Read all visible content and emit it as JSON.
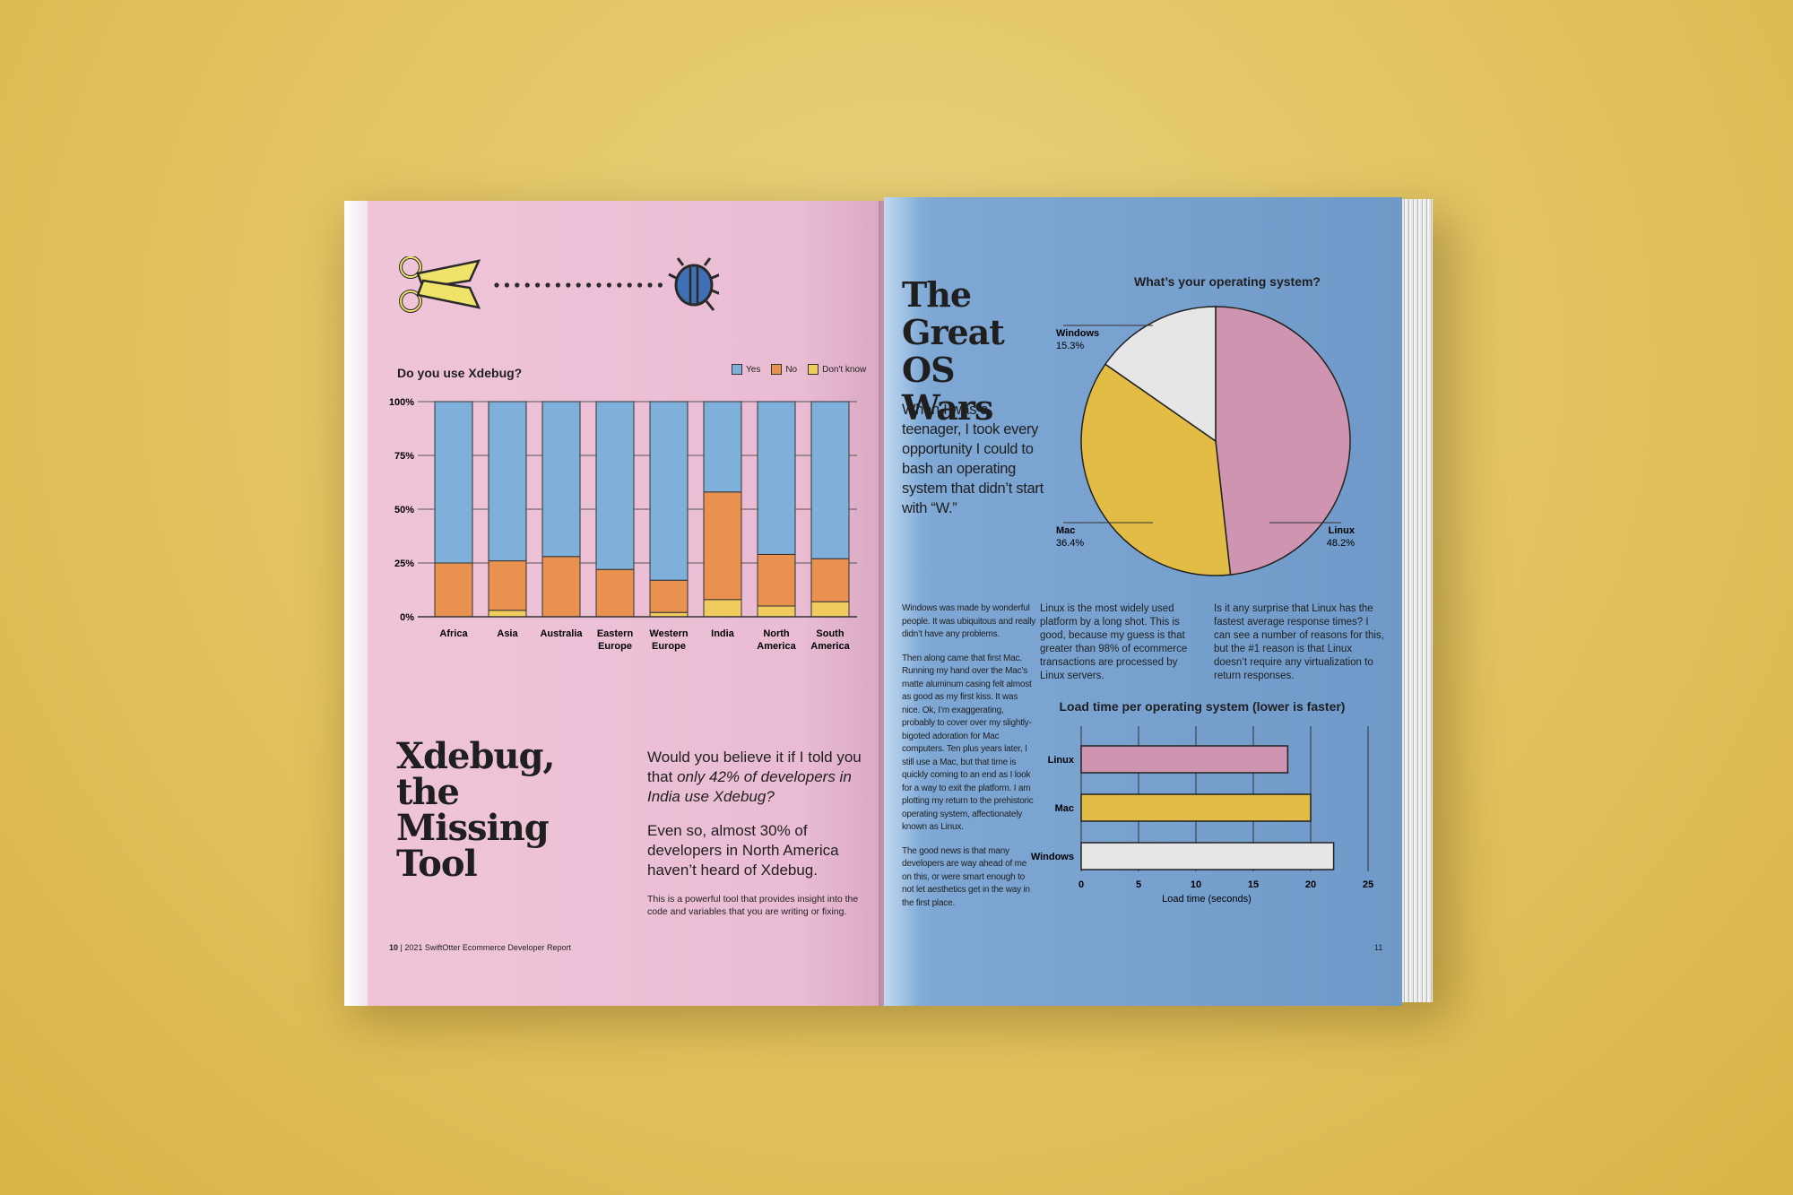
{
  "left_page": {
    "chart": {
      "title": "Do you use Xdebug?",
      "legend": [
        "Yes",
        "No",
        "Don't know"
      ]
    },
    "heading": "Xdebug, the Missing Tool",
    "lead_1_pre": "Would you believe it if I told you that ",
    "lead_1_em": "only 42% of developers in India use Xdebug?",
    "lead_2": "Even so, almost 30% of developers in North America haven’t heard of Xdebug.",
    "note": "This is a powerful tool that provides insight into the code and variables that you are writing or fixing.",
    "footer_page": "10",
    "footer_sep": "|",
    "footer_text": "2021 SwiftOtter Ecommerce Developer Report"
  },
  "right_page": {
    "heading": "The Great OS Wars",
    "intro": "When I was a teenager, I took every opportunity I could to bash an operating system that didn’t start with “W.”",
    "col1": [
      "Windows was made by wonderful people. It was ubiquitous and really didn’t have any problems.",
      "Then along came that first Mac. Running my hand over the Mac’s matte aluminum casing felt almost as good as my first kiss. It was nice. Ok, I’m exaggerating, probably to cover over my slightly-bigoted adoration for Mac computers. Ten plus years later, I still use a Mac, but that time is quickly coming to an end as I look for a way to exit the platform. I am plotting my return to the prehistoric operating system, affectionately known as Linux.",
      "The good news is that many developers are way ahead of me on this, or were smart enough to not let aesthetics get in the way in the first place."
    ],
    "col2": "Linux is the most widely used platform by a long shot. This is good, because my guess is that greater than 98% of ecommerce transactions are processed by Linux servers.",
    "col3": "Is it any surprise that Linux has the fastest average response times? I can see a number of reasons for this, but the #1 reason is that Linux doesn’t require any virtualization to return responses.",
    "footer_page": "11"
  },
  "chart_data": [
    {
      "type": "bar",
      "stacked": true,
      "title": "Do you use Xdebug?",
      "categories": [
        "Africa",
        "Asia",
        "Australia",
        "Eastern Europe",
        "Western Europe",
        "India",
        "North America",
        "South America"
      ],
      "series": [
        {
          "name": "Don't know",
          "values": [
            0,
            3,
            0,
            0,
            2,
            8,
            5,
            7
          ]
        },
        {
          "name": "No",
          "values": [
            25,
            23,
            28,
            22,
            15,
            50,
            24,
            20
          ]
        },
        {
          "name": "Yes",
          "values": [
            75,
            74,
            72,
            78,
            83,
            42,
            71,
            73
          ]
        }
      ],
      "yticks": [
        "0%",
        "25%",
        "50%",
        "75%",
        "100%"
      ],
      "ylim": [
        0,
        100
      ],
      "legend_position": "top-right",
      "grid": true,
      "colors": {
        "Yes": "#7fb0dc",
        "No": "#e9914f",
        "Don't know": "#f0cc5e"
      }
    },
    {
      "type": "pie",
      "title": "What’s your operating system?",
      "slices": [
        {
          "label": "Linux",
          "value": 48.2,
          "display": "48.2%",
          "color": "#cf95b0"
        },
        {
          "label": "Mac",
          "value": 36.4,
          "display": "36.4%",
          "color": "#e2bc44"
        },
        {
          "label": "Windows",
          "value": 15.3,
          "display": "15.3%",
          "color": "#e6e6e6"
        }
      ]
    },
    {
      "type": "bar",
      "orientation": "horizontal",
      "title": "Load time per operating system (lower is faster)",
      "categories": [
        "Linux",
        "Mac",
        "Windows"
      ],
      "values": [
        18,
        20,
        22
      ],
      "xlabel": "Load time (seconds)",
      "xticks": [
        "0",
        "5",
        "10",
        "15",
        "20",
        "25"
      ],
      "xlim": [
        0,
        25
      ],
      "colors": [
        "#cf95b0",
        "#e2bc44",
        "#e6e6e6"
      ]
    }
  ],
  "colors": {
    "left_page": "#ecc0d6",
    "right_page": "#7ea7d4",
    "background": "#e3c35f",
    "ink": "#1f1f1f"
  },
  "icons": [
    "scissors-icon",
    "dotted-cut-line",
    "bug-icon"
  ]
}
